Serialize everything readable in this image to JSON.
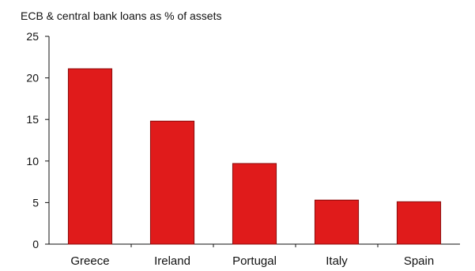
{
  "chart_data": {
    "type": "bar",
    "title": "ECB & central bank loans as % of assets",
    "xlabel": "",
    "ylabel": "",
    "categories": [
      "Greece",
      "Ireland",
      "Portugal",
      "Italy",
      "Spain"
    ],
    "values": [
      21.1,
      14.8,
      9.7,
      5.3,
      5.1
    ],
    "ylim": [
      0,
      25
    ],
    "yticks": [
      0,
      5,
      10,
      15,
      20,
      25
    ],
    "grid": false,
    "legend": "none",
    "bar_color": "#e01b1b",
    "bar_edge_color": "#8a0c0c",
    "plot_background": "#ffffff",
    "axis_color": "#111111"
  }
}
